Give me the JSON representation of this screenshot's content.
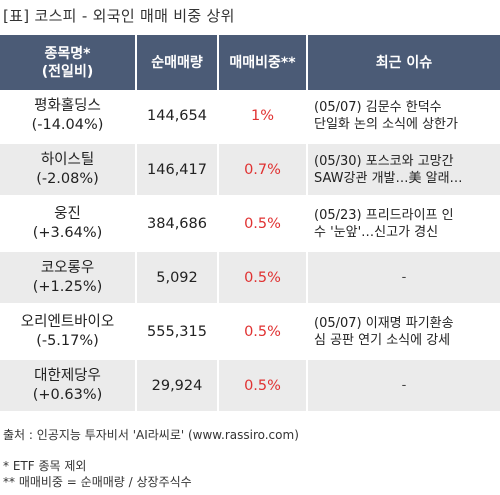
{
  "title": "[표] 코스피 - 외국인 매매 비중 상위",
  "headers": {
    "name_line1": "종목명*",
    "name_line2": "(전일비)",
    "volume": "순매매량",
    "ratio": "매매비중**",
    "issue": "최근 이슈"
  },
  "rows": [
    {
      "name": "평화홀딩스",
      "change": "(-14.04%)",
      "volume": "144,654",
      "ratio": "1%",
      "issue_line1": "(05/07) 김문수 한덕수",
      "issue_line2": "단일화 논의 소식에 상한가"
    },
    {
      "name": "하이스틸",
      "change": "(-2.08%)",
      "volume": "146,417",
      "ratio": "0.7%",
      "issue_line1": "(05/30) 포스코와 고망간",
      "issue_line2": "SAW강관 개발…美 알래…"
    },
    {
      "name": "웅진",
      "change": "(+3.64%)",
      "volume": "384,686",
      "ratio": "0.5%",
      "issue_line1": "(05/23) 프리드라이프 인",
      "issue_line2": "수 '눈앞'…신고가 경신"
    },
    {
      "name": "코오롱우",
      "change": "(+1.25%)",
      "volume": "5,092",
      "ratio": "0.5%",
      "issue_line1": "-",
      "issue_line2": ""
    },
    {
      "name": "오리엔트바이오",
      "change": "(-5.17%)",
      "volume": "555,315",
      "ratio": "0.5%",
      "issue_line1": "(05/07) 이재명 파기환송",
      "issue_line2": "심 공판 연기 소식에 강세"
    },
    {
      "name": "대한제당우",
      "change": "(+0.63%)",
      "volume": "29,924",
      "ratio": "0.5%",
      "issue_line1": "-",
      "issue_line2": ""
    }
  ],
  "source": "출처 : 인공지능 투자비서 'AI라씨로' (www.rassiro.com)",
  "notes": [
    "* ETF 종목 제외",
    "** 매매비중 = 순매매량 / 상장주식수"
  ],
  "colors": {
    "header_bg": "#4b5b76",
    "ratio_text": "#e03232",
    "alt_row": "#ebebeb"
  }
}
